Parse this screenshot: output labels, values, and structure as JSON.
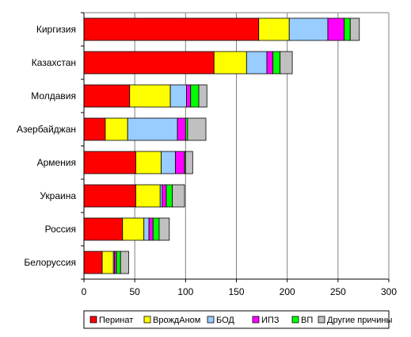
{
  "chart_data": {
    "type": "bar",
    "orientation": "horizontal",
    "stacked": true,
    "title": "",
    "xlabel": "",
    "ylabel": "",
    "xlim": [
      0,
      300
    ],
    "xticks": [
      0,
      50,
      100,
      150,
      200,
      250,
      300
    ],
    "grid": "vertical",
    "legend_position": "bottom",
    "categories": [
      "Киргизия",
      "Казахстан",
      "Молдавия",
      "Азербайджан",
      "Армения",
      "Украина",
      "Россия",
      "Белоруссия"
    ],
    "series": [
      {
        "name": "Перинат",
        "color": "#ff0000",
        "values": [
          172,
          128,
          45,
          21,
          51,
          51,
          38,
          18
        ]
      },
      {
        "name": "ВрождАном",
        "color": "#ffff00",
        "values": [
          30,
          32,
          40,
          22,
          25,
          24,
          21,
          11
        ]
      },
      {
        "name": "БОД",
        "color": "#99ccff",
        "values": [
          38,
          20,
          16,
          49,
          14,
          2,
          5,
          1
        ]
      },
      {
        "name": "ИПЗ",
        "color": "#ff00ff",
        "values": [
          16,
          6,
          4,
          8,
          9,
          4,
          4,
          2
        ]
      },
      {
        "name": "ВП",
        "color": "#00ff00",
        "values": [
          6,
          7,
          8,
          2,
          1,
          6,
          6,
          4
        ]
      },
      {
        "name": "Другие причины",
        "color": "#c0c0c0",
        "values": [
          9,
          12,
          8,
          18,
          7,
          12,
          10,
          8
        ]
      }
    ]
  }
}
